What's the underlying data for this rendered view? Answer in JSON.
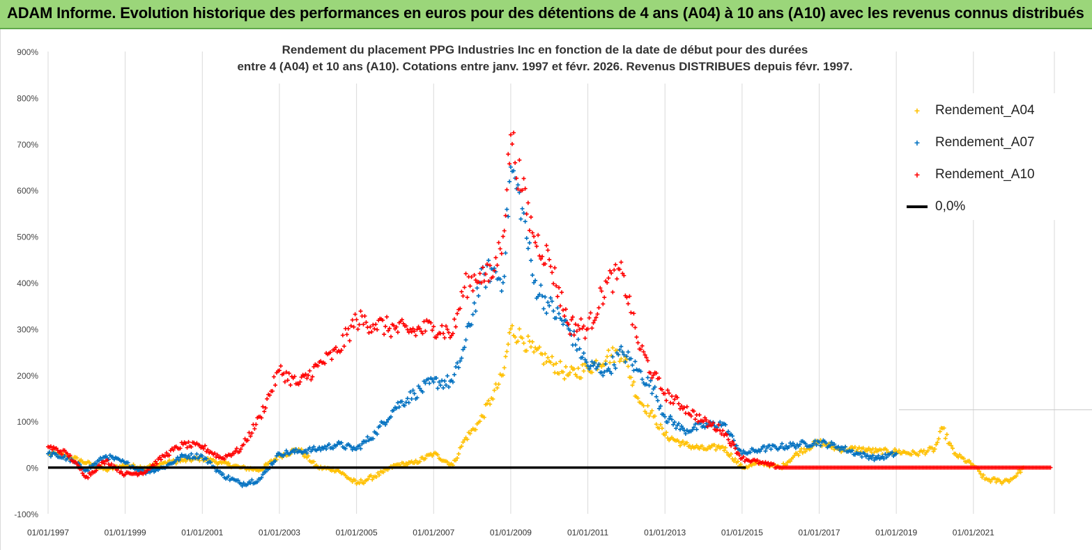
{
  "banner": {
    "title": "ADAM Informe. Evolution historique des performances en euros pour des détentions de 4 ans (A04) à 10 ans (A10) avec les revenus connus distribués"
  },
  "chart_data": {
    "type": "scatter",
    "title_line1": "Rendement du placement PPG Industries Inc en fonction de la date de début pour des durées",
    "title_line2": "entre 4 (A04) et 10 ans (A10).  Cotations entre janv. 1997 et févr. 2026. Revenus DISTRIBUES depuis févr. 1997.",
    "xlabel": "",
    "ylabel": "",
    "x_range": [
      1997.0,
      2023.1
    ],
    "ylim": [
      -100,
      900
    ],
    "y_ticks": [
      "-100%",
      "0%",
      "100%",
      "200%",
      "300%",
      "400%",
      "500%",
      "600%",
      "700%",
      "800%",
      "900%"
    ],
    "x_ticks": [
      "01/01/1997",
      "01/01/1999",
      "01/01/2001",
      "01/01/2003",
      "01/01/2005",
      "01/01/2007",
      "01/01/2009",
      "01/01/2011",
      "01/01/2013",
      "01/01/2015",
      "01/01/2017",
      "01/01/2019",
      "01/01/2021"
    ],
    "grid": "vertical",
    "legend_position": "top-right",
    "series": [
      {
        "name": "Rendement_A04",
        "color": "#ffc000",
        "marker": "+",
        "points": [
          [
            1997.0,
            30
          ],
          [
            1997.5,
            25
          ],
          [
            1998.0,
            10
          ],
          [
            1998.5,
            -5
          ],
          [
            1999.0,
            5
          ],
          [
            1999.5,
            0
          ],
          [
            2000.0,
            10
          ],
          [
            2000.5,
            15
          ],
          [
            2001.0,
            20
          ],
          [
            2001.5,
            10
          ],
          [
            2002.0,
            0
          ],
          [
            2002.5,
            -5
          ],
          [
            2003.0,
            25
          ],
          [
            2003.5,
            40
          ],
          [
            2004.0,
            0
          ],
          [
            2004.5,
            -5
          ],
          [
            2005.0,
            -35
          ],
          [
            2005.3,
            -25
          ],
          [
            2005.7,
            -10
          ],
          [
            2006.0,
            5
          ],
          [
            2006.5,
            10
          ],
          [
            2007.0,
            30
          ],
          [
            2007.5,
            5
          ],
          [
            2007.8,
            60
          ],
          [
            2008.2,
            100
          ],
          [
            2008.5,
            150
          ],
          [
            2008.8,
            200
          ],
          [
            2009.0,
            300
          ],
          [
            2009.3,
            280
          ],
          [
            2009.6,
            250
          ],
          [
            2010.0,
            230
          ],
          [
            2010.5,
            200
          ],
          [
            2011.0,
            215
          ],
          [
            2011.5,
            240
          ],
          [
            2011.9,
            250
          ],
          [
            2012.3,
            150
          ],
          [
            2012.7,
            110
          ],
          [
            2013.0,
            70
          ],
          [
            2013.5,
            50
          ],
          [
            2014.0,
            40
          ],
          [
            2014.5,
            45
          ],
          [
            2015.0,
            0
          ],
          [
            2015.5,
            10
          ],
          [
            2016.0,
            0
          ],
          [
            2016.5,
            35
          ],
          [
            2017.0,
            55
          ],
          [
            2017.5,
            40
          ],
          [
            2018.0,
            40
          ],
          [
            2018.5,
            35
          ],
          [
            2019.0,
            35
          ],
          [
            2019.5,
            30
          ],
          [
            2020.0,
            40
          ],
          [
            2020.2,
            85
          ],
          [
            2020.5,
            30
          ],
          [
            2021.0,
            5
          ],
          [
            2021.3,
            -25
          ],
          [
            2021.7,
            -30
          ],
          [
            2022.0,
            -25
          ],
          [
            2022.3,
            0
          ]
        ]
      },
      {
        "name": "Rendement_A07",
        "color": "#0070c0",
        "marker": "+",
        "points": [
          [
            1997.0,
            30
          ],
          [
            1997.5,
            20
          ],
          [
            1998.0,
            -5
          ],
          [
            1998.5,
            25
          ],
          [
            1999.0,
            10
          ],
          [
            1999.5,
            -10
          ],
          [
            2000.0,
            0
          ],
          [
            2000.5,
            25
          ],
          [
            2001.0,
            25
          ],
          [
            2001.5,
            -15
          ],
          [
            2002.0,
            -35
          ],
          [
            2002.5,
            -25
          ],
          [
            2003.0,
            30
          ],
          [
            2003.5,
            35
          ],
          [
            2004.0,
            40
          ],
          [
            2004.5,
            50
          ],
          [
            2005.0,
            40
          ],
          [
            2005.5,
            75
          ],
          [
            2006.0,
            130
          ],
          [
            2006.5,
            160
          ],
          [
            2007.0,
            185
          ],
          [
            2007.5,
            185
          ],
          [
            2007.8,
            260
          ],
          [
            2008.2,
            400
          ],
          [
            2008.5,
            430
          ],
          [
            2008.8,
            400
          ],
          [
            2009.0,
            650
          ],
          [
            2009.3,
            560
          ],
          [
            2009.6,
            400
          ],
          [
            2010.0,
            350
          ],
          [
            2010.5,
            300
          ],
          [
            2011.0,
            220
          ],
          [
            2011.5,
            210
          ],
          [
            2011.9,
            250
          ],
          [
            2012.3,
            210
          ],
          [
            2012.7,
            170
          ],
          [
            2013.0,
            110
          ],
          [
            2013.5,
            80
          ],
          [
            2014.0,
            90
          ],
          [
            2014.5,
            95
          ],
          [
            2015.0,
            30
          ],
          [
            2015.5,
            40
          ],
          [
            2016.0,
            45
          ],
          [
            2016.5,
            50
          ],
          [
            2017.0,
            55
          ],
          [
            2017.5,
            45
          ],
          [
            2018.0,
            30
          ],
          [
            2018.5,
            20
          ],
          [
            2019.0,
            30
          ]
        ]
      },
      {
        "name": "Rendement_A10",
        "color": "#ff0000",
        "marker": "+",
        "points": [
          [
            1997.0,
            45
          ],
          [
            1997.5,
            30
          ],
          [
            1998.0,
            -20
          ],
          [
            1998.5,
            15
          ],
          [
            1999.0,
            -15
          ],
          [
            1999.5,
            -10
          ],
          [
            2000.0,
            25
          ],
          [
            2000.5,
            50
          ],
          [
            2001.0,
            45
          ],
          [
            2001.5,
            20
          ],
          [
            2002.0,
            40
          ],
          [
            2002.5,
            110
          ],
          [
            2003.0,
            210
          ],
          [
            2003.5,
            180
          ],
          [
            2004.0,
            220
          ],
          [
            2004.5,
            250
          ],
          [
            2005.0,
            320
          ],
          [
            2005.5,
            310
          ],
          [
            2006.0,
            300
          ],
          [
            2006.5,
            295
          ],
          [
            2007.0,
            305
          ],
          [
            2007.5,
            290
          ],
          [
            2007.8,
            390
          ],
          [
            2008.2,
            420
          ],
          [
            2008.5,
            410
          ],
          [
            2008.8,
            500
          ],
          [
            2009.0,
            720
          ],
          [
            2009.3,
            600
          ],
          [
            2009.6,
            500
          ],
          [
            2010.0,
            450
          ],
          [
            2010.5,
            310
          ],
          [
            2011.0,
            300
          ],
          [
            2011.5,
            400
          ],
          [
            2011.9,
            420
          ],
          [
            2012.3,
            270
          ],
          [
            2012.7,
            200
          ],
          [
            2013.0,
            160
          ],
          [
            2013.5,
            130
          ],
          [
            2014.0,
            100
          ],
          [
            2014.5,
            80
          ],
          [
            2015.0,
            20
          ],
          [
            2015.5,
            10
          ],
          [
            2016.0,
            0
          ],
          [
            2023.0,
            0
          ]
        ]
      },
      {
        "name": "0,0%",
        "color": "#000000",
        "marker": "line",
        "points": [
          [
            1997.0,
            0
          ],
          [
            2015.1,
            0
          ]
        ]
      }
    ]
  }
}
